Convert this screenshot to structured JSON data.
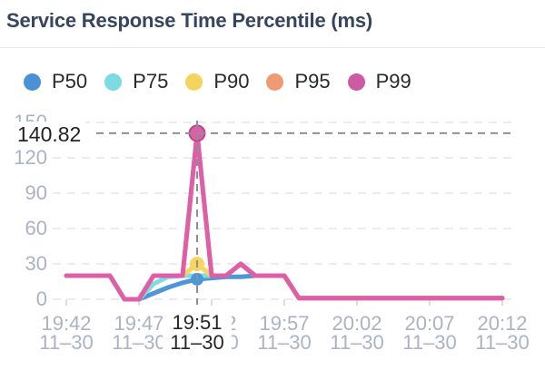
{
  "header": {
    "title": "Service Response Time Percentile (ms)"
  },
  "legend": {
    "items": [
      {
        "label": "P50",
        "color": "#4A92D5"
      },
      {
        "label": "P75",
        "color": "#7CDAE0"
      },
      {
        "label": "P90",
        "color": "#F5D45E"
      },
      {
        "label": "P95",
        "color": "#F09A74"
      },
      {
        "label": "P99",
        "color": "#CC5AA4"
      }
    ]
  },
  "chart_data": {
    "type": "line",
    "title": "Service Response Time Percentile (ms)",
    "ylabel": "ms",
    "ylim": [
      0,
      150
    ],
    "yticks": [
      0,
      30,
      60,
      90,
      120,
      150
    ],
    "grid": "dashed-horizontal",
    "legend_position": "top",
    "x_times": [
      "19:42",
      "19:43",
      "19:44",
      "19:45",
      "19:46",
      "19:47",
      "19:48",
      "19:49",
      "19:50",
      "19:51",
      "19:52",
      "19:53",
      "19:54",
      "19:55",
      "19:56",
      "19:57",
      "19:58",
      "19:59",
      "20:00",
      "20:01",
      "20:02",
      "20:03",
      "20:04",
      "20:05",
      "20:06",
      "20:07",
      "20:08",
      "20:09",
      "20:10",
      "20:11",
      "20:12"
    ],
    "x_date": "11–30",
    "x_tick_labels": [
      {
        "time": "19:42",
        "date": "11–30"
      },
      {
        "time": "19:47",
        "date": "11–30"
      },
      {
        "time": "19:52",
        "date": "11–30"
      },
      {
        "time": "19:57",
        "date": "11–30"
      },
      {
        "time": "20:02",
        "date": "11–30"
      },
      {
        "time": "20:07",
        "date": "11–30"
      },
      {
        "time": "20:12",
        "date": "11–30"
      }
    ],
    "series": [
      {
        "name": "P50",
        "color": "#4E96D6",
        "values": [
          20,
          20,
          20,
          20,
          0,
          0,
          5,
          10,
          14,
          17,
          18,
          19,
          19,
          20,
          20,
          20,
          1,
          1,
          1,
          1,
          1,
          1,
          1,
          1,
          1,
          1,
          1,
          1,
          1,
          1,
          1
        ]
      },
      {
        "name": "P75",
        "color": "#7FDDE1",
        "values": [
          20,
          20,
          20,
          20,
          0,
          0,
          13,
          19,
          20,
          20,
          20,
          20,
          30,
          20,
          20,
          20,
          1,
          1,
          1,
          1,
          1,
          1,
          1,
          1,
          1,
          1,
          1,
          1,
          1,
          1,
          1
        ]
      },
      {
        "name": "P90",
        "color": "#F6D65E",
        "values": [
          20,
          20,
          20,
          20,
          0,
          0,
          20,
          20,
          20,
          30,
          20,
          20,
          30,
          20,
          20,
          20,
          1,
          1,
          1,
          1,
          1,
          1,
          1,
          1,
          1,
          1,
          1,
          1,
          1,
          1,
          1
        ]
      },
      {
        "name": "P95",
        "color": "#F09A72",
        "values": [
          20,
          20,
          20,
          20,
          0,
          0,
          20,
          20,
          20,
          140.82,
          20,
          20,
          30,
          20,
          20,
          20,
          1,
          1,
          1,
          1,
          1,
          1,
          1,
          1,
          1,
          1,
          1,
          1,
          1,
          1,
          1
        ]
      },
      {
        "name": "P99",
        "color": "#DC5FA7",
        "values": [
          20,
          20,
          20,
          20,
          0,
          0,
          20,
          20,
          20,
          140.82,
          20,
          20,
          30,
          20,
          20,
          20,
          1,
          1,
          1,
          1,
          1,
          1,
          1,
          1,
          1,
          1,
          1,
          1,
          1,
          1,
          1
        ]
      }
    ],
    "highlight": {
      "time": "19:51",
      "date": "11–30",
      "value": 140.82,
      "value_label": "140.82",
      "series": "P99",
      "markers": [
        {
          "series": "P90",
          "value": 30
        },
        {
          "series": "P50",
          "value": 17
        },
        {
          "series": "P99",
          "value": 140.82
        }
      ]
    },
    "colors": {
      "grid": "#EBECF1",
      "crosshair": "#8E8E96",
      "axis_text": "#ABB3C2",
      "tick": "#D9DDE3",
      "title_text": "#36455E",
      "highlight_text": "#222222",
      "marker_stroke_p99": "#BE4390"
    }
  }
}
